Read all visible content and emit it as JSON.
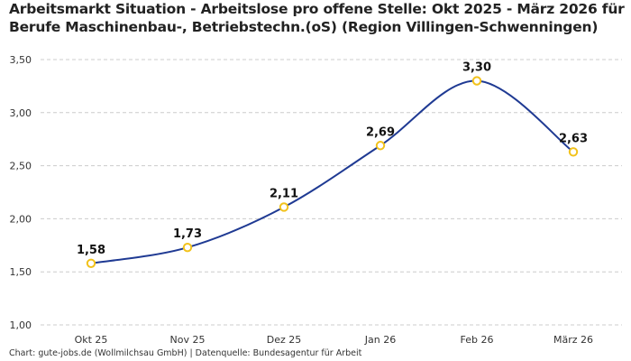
{
  "title_lines": [
    "Arbeitsmarkt Situation - Arbeitslose pro offene Stelle: Okt 2025 - März 2026 für",
    "Berufe Maschinenbau-, Betriebstechn.(oS) (Region Villingen-Schwenningen)"
  ],
  "footer": "Chart: gute-jobs.de (Wollmilchsau GmbH) | Datenquelle: Bundesagentur für Arbeit",
  "colors": {
    "line": "#1f3a93",
    "marker_stroke": "#f2c21b",
    "marker_fill": "#ffffff",
    "grid": "#cccccc"
  },
  "chart_data": {
    "type": "line",
    "title": "Arbeitsmarkt Situation - Arbeitslose pro offene Stelle: Okt 2025 - März 2026 für Berufe Maschinenbau-, Betriebstechn.(oS) (Region Villingen-Schwenningen)",
    "categories": [
      "Okt 25",
      "Nov 25",
      "Dez 25",
      "Jan 26",
      "Feb 26",
      "März 26"
    ],
    "series": [
      {
        "values": [
          1.58,
          1.73,
          2.11,
          2.69,
          3.3,
          2.63
        ]
      }
    ],
    "data_labels": [
      "1,58",
      "1,73",
      "2,11",
      "2,69",
      "3,30",
      "2,63"
    ],
    "y_ticks": [
      1.0,
      1.5,
      2.0,
      2.5,
      3.0,
      3.5
    ],
    "y_tick_labels": [
      "1,00",
      "1,50",
      "2,00",
      "2,50",
      "3,00",
      "3,50"
    ],
    "ylim": [
      1.0,
      3.5
    ],
    "grid": true,
    "smooth": true,
    "xlabel": "",
    "ylabel": ""
  }
}
